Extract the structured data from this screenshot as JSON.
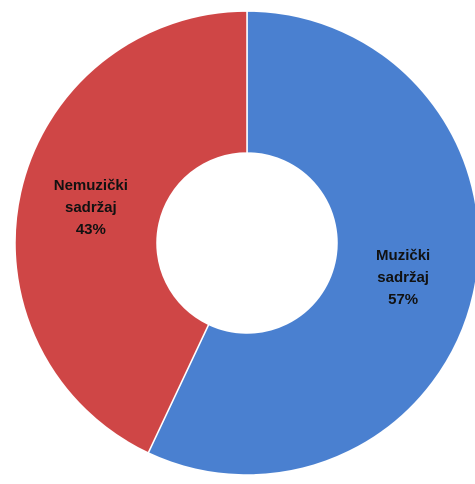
{
  "chart_data": {
    "type": "donut",
    "categories": [
      "Muzički sadržaj",
      "Nemuzički sadržaj"
    ],
    "values": [
      57,
      43
    ],
    "value_labels": [
      "57%",
      "43%"
    ],
    "colors": [
      "#4a80d0",
      "#cf4646"
    ]
  }
}
